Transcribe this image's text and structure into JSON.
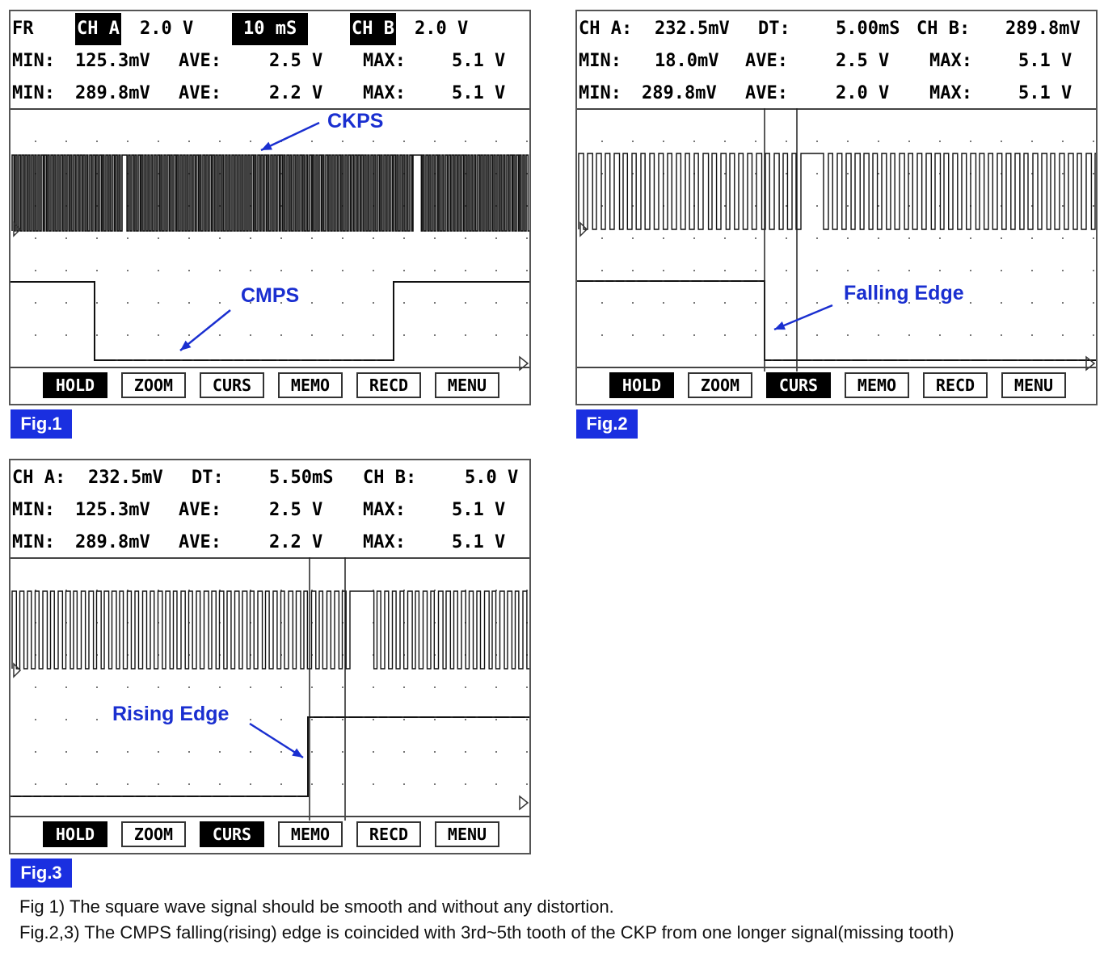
{
  "fig1": {
    "header": {
      "row1": {
        "fr": "FR",
        "cha": "CH A",
        "cha_v": "2.0 V",
        "time": "10 mS",
        "chb": "CH B",
        "chb_v": "2.0 V"
      },
      "row2": {
        "min": "MIN:",
        "min_v": "125.3mV",
        "ave": "AVE:",
        "ave_v": "2.5 V",
        "max": "MAX:",
        "max_v": "5.1 V"
      },
      "row3": {
        "min": "MIN:",
        "min_v": "289.8mV",
        "ave": "AVE:",
        "ave_v": "2.2 V",
        "max": "MAX:",
        "max_v": "5.1 V"
      }
    },
    "annotations": {
      "ckps": "CKPS",
      "cmps": "CMPS"
    },
    "tag": "Fig.1"
  },
  "fig2": {
    "header": {
      "row1": {
        "cha": "CH A:",
        "cha_v": "232.5mV",
        "dt": "DT:",
        "dt_v": "5.00mS",
        "chb": "CH B:",
        "chb_v": "289.8mV"
      },
      "row2": {
        "min": "MIN:",
        "min_v": "18.0mV",
        "ave": "AVE:",
        "ave_v": "2.5 V",
        "max": "MAX:",
        "max_v": "5.1 V"
      },
      "row3": {
        "min": "MIN:",
        "min_v": "289.8mV",
        "ave": "AVE:",
        "ave_v": "2.0 V",
        "max": "MAX:",
        "max_v": "5.1 V"
      }
    },
    "annotations": {
      "edge": "Falling Edge"
    },
    "tag": "Fig.2"
  },
  "fig3": {
    "header": {
      "row1": {
        "cha": "CH A:",
        "cha_v": "232.5mV",
        "dt": "DT:",
        "dt_v": "5.50mS",
        "chb": "CH B:",
        "chb_v": "5.0 V"
      },
      "row2": {
        "min": "MIN:",
        "min_v": "125.3mV",
        "ave": "AVE:",
        "ave_v": "2.5 V",
        "max": "MAX:",
        "max_v": "5.1 V"
      },
      "row3": {
        "min": "MIN:",
        "min_v": "289.8mV",
        "ave": "AVE:",
        "ave_v": "2.2 V",
        "max": "MAX:",
        "max_v": "5.1 V"
      }
    },
    "annotations": {
      "edge": "Rising Edge"
    },
    "tag": "Fig.3"
  },
  "menu": {
    "hold": "HOLD",
    "zoom": "ZOOM",
    "curs": "CURS",
    "memo": "MEMO",
    "recd": "RECD",
    "menu": "MENU"
  },
  "notes": {
    "line1": "Fig 1) The square wave signal should be smooth and without any distortion.",
    "line2": "Fig.2,3) The CMPS falling(rising) edge is coincided with 3rd~5th tooth of the CKP from one longer signal(missing tooth)"
  },
  "colors": {
    "accent": "#1a2fe0",
    "annotation": "#1a2fd0",
    "trace": "#111111"
  }
}
